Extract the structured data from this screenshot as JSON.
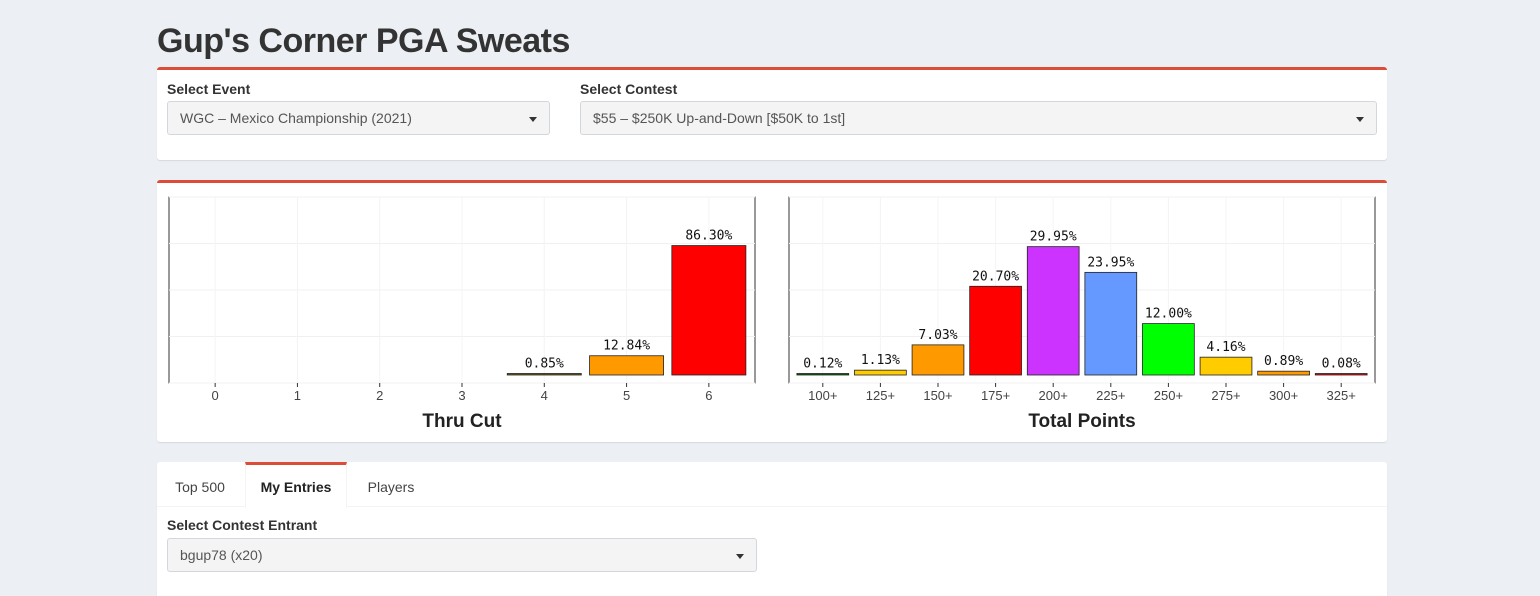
{
  "page": {
    "title": "Gup's Corner PGA Sweats"
  },
  "selects": {
    "event_label": "Select Event",
    "event_value": "WGC – Mexico Championship (2021)",
    "contest_label": "Select Contest",
    "contest_value": "$55 – $250K Up-and-Down [$50K to 1st]"
  },
  "tabs": [
    {
      "label": "Top 500"
    },
    {
      "label": "My Entries"
    },
    {
      "label": "Players"
    }
  ],
  "entrant": {
    "label": "Select Contest Entrant",
    "value": "bgup78 (x20)"
  },
  "colors": {
    "accent": "#dd4b39"
  },
  "chart_data": [
    {
      "type": "bar",
      "xlabel": "Thru Cut",
      "categories": [
        "0",
        "1",
        "2",
        "3",
        "4",
        "5",
        "6"
      ],
      "values": [
        0,
        0,
        0,
        0,
        0.85,
        12.84,
        86.3
      ],
      "labels": [
        "",
        "",
        "",
        "",
        "0.85%",
        "12.84%",
        "86.30%"
      ],
      "colors": [
        "#000000",
        "#000000",
        "#000000",
        "#000000",
        "#6b5a12",
        "#ff9900",
        "#ff0000"
      ],
      "ylim": [
        0,
        100
      ],
      "grid": true
    },
    {
      "type": "bar",
      "xlabel": "Total Points",
      "categories": [
        "100+",
        "125+",
        "150+",
        "175+",
        "200+",
        "225+",
        "250+",
        "275+",
        "300+",
        "325+"
      ],
      "values": [
        0.12,
        1.13,
        7.03,
        20.7,
        29.95,
        23.95,
        12.0,
        4.16,
        0.89,
        0.08
      ],
      "labels": [
        "0.12%",
        "1.13%",
        "7.03%",
        "20.70%",
        "29.95%",
        "23.95%",
        "12.00%",
        "4.16%",
        "0.89%",
        "0.08%"
      ],
      "colors": [
        "#006400",
        "#ffcc00",
        "#ff9900",
        "#ff0000",
        "#cc33ff",
        "#6699ff",
        "#00ff00",
        "#ffcc00",
        "#ff9900",
        "#ff0000"
      ],
      "ylim": [
        0,
        35
      ],
      "grid": true
    }
  ]
}
